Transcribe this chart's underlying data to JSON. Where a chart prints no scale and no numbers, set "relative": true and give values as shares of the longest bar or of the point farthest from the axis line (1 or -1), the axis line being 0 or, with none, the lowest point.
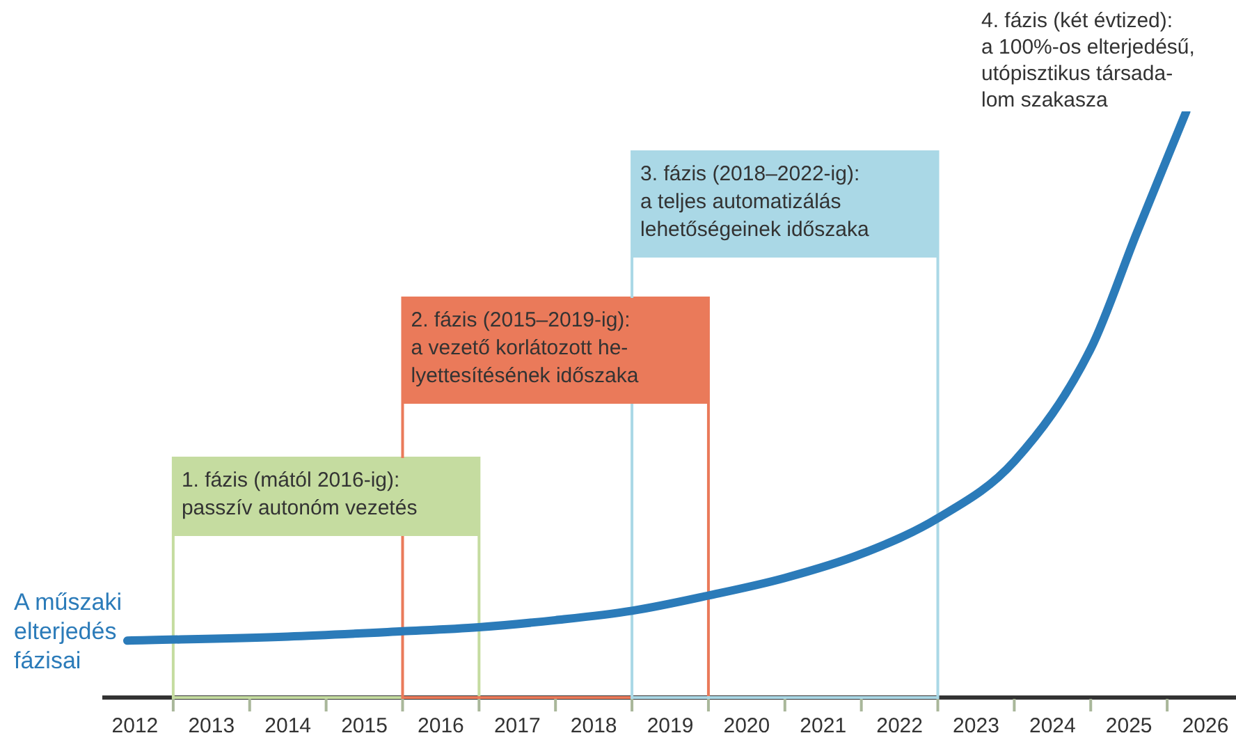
{
  "chart_data": {
    "type": "line",
    "relative": true,
    "legend": false,
    "grid": false,
    "xlim": [
      2011.6,
      2026.4
    ],
    "xticks": [
      2012,
      2013,
      2014,
      2015,
      2016,
      2017,
      2018,
      2019,
      2020,
      2021,
      2022,
      2023,
      2024,
      2025,
      2026,
      {
        "value": 2012.5,
        "label": null
      },
      {
        "value": 2013.5,
        "label": null
      },
      {
        "value": 2014.5,
        "label": null
      },
      {
        "value": 2015.5,
        "label": null
      },
      {
        "value": 2016.5,
        "label": null
      },
      {
        "value": 2017.5,
        "label": null
      },
      {
        "value": 2018.5,
        "label": null
      },
      {
        "value": 2019.5,
        "label": null
      },
      {
        "value": 2020.5,
        "label": null
      },
      {
        "value": 2021.5,
        "label": null
      },
      {
        "value": 2022.5,
        "label": null
      },
      {
        "value": 2023.5,
        "label": null
      },
      {
        "value": 2024.5,
        "label": null
      },
      {
        "value": 2025.5,
        "label": null
      }
    ],
    "series": [
      {
        "name": "A műszaki\nelterjedés\nfázisai",
        "color": "#2b7bb9",
        "x": [
          2011.9,
          2014,
          2015.5,
          2016.5,
          2017.5,
          2018.5,
          2019.5,
          2020.5,
          2021.5,
          2022.5,
          2023.5,
          2024.5,
          2025.1,
          2025.75
        ],
        "values": [
          0.097,
          0.104,
          0.113,
          0.12,
          0.132,
          0.148,
          0.174,
          0.204,
          0.245,
          0.306,
          0.403,
          0.595,
          0.792,
          1
        ]
      }
    ],
    "bands": [
      {
        "axis": "x",
        "from": 2012.5,
        "to": 2016.5,
        "label": "1. fázis (mától 2016-ig):\npasszív autonóm vezetés",
        "color": "#c5dca0"
      },
      {
        "axis": "x",
        "from": 2015.5,
        "to": 2019.5,
        "label": "2. fázis (2015–2019-ig):\na vezető korlátozott he-\nlyettesítésének időszaka",
        "color": "#ea7a5a"
      },
      {
        "axis": "x",
        "from": 2018.5,
        "to": 2022.5,
        "label": "3. fázis (2018–2022-ig):\na teljes automatizálás\nlehetőségeinek időszaka",
        "color": "#aad8e6"
      }
    ],
    "annotations": [
      "4. fázis (két évtized):\na 100%-os elterjedésű,\nutópisztikus társada-\nlom szakasza"
    ]
  }
}
